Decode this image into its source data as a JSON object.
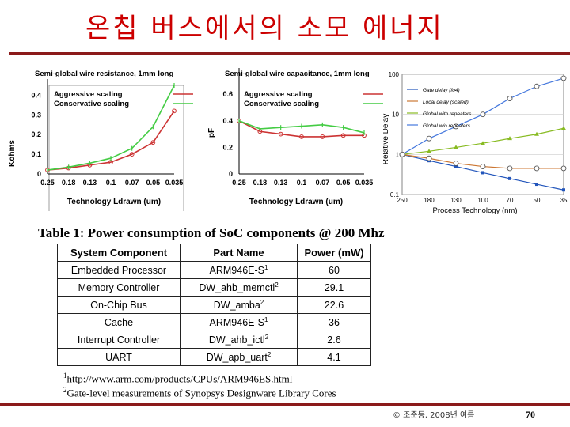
{
  "slide": {
    "title": "온칩 버스에서의 소모 에너지",
    "footer": "© 조준동, 2008년 여름",
    "page_number": "70"
  },
  "chart_data": [
    {
      "type": "line",
      "title": "Semi-global wire resistance, 1mm long",
      "xlabel": "Technology Ldrawn (um)",
      "ylabel": "Kohms",
      "categories": [
        "0.25",
        "0.18",
        "0.13",
        "0.1",
        "0.07",
        "0.05",
        "0.035"
      ],
      "ylim": [
        0,
        0.45
      ],
      "yticks": [
        "0",
        "0.1",
        "0.2",
        "0.3",
        "0.4"
      ],
      "series": [
        {
          "name": "Aggressive scaling",
          "color": "#cc3333",
          "values": [
            0.02,
            0.03,
            0.045,
            0.06,
            0.1,
            0.16,
            0.32
          ]
        },
        {
          "name": "Conservative scaling",
          "color": "#44cc44",
          "values": [
            0.02,
            0.035,
            0.055,
            0.08,
            0.13,
            0.24,
            0.45
          ]
        }
      ]
    },
    {
      "type": "line",
      "title": "Semi-global wire capacitance, 1mm long",
      "xlabel": "Technology Ldrawn (um)",
      "ylabel": "pF",
      "categories": [
        "0.25",
        "0.18",
        "0.13",
        "0.1",
        "0.07",
        "0.05",
        "0.035"
      ],
      "ylim": [
        0,
        0.75
      ],
      "yticks": [
        "0",
        "0.2",
        "0.4",
        "0.6"
      ],
      "series": [
        {
          "name": "Aggressive scaling",
          "color": "#cc3333",
          "values": [
            0.4,
            0.32,
            0.3,
            0.28,
            0.28,
            0.29,
            0.29
          ]
        },
        {
          "name": "Conservative scaling",
          "color": "#44cc44",
          "values": [
            0.4,
            0.34,
            0.35,
            0.36,
            0.37,
            0.35,
            0.31
          ]
        }
      ]
    },
    {
      "type": "line",
      "yscale": "log",
      "xlabel": "Process Technology (nm)",
      "ylabel": "Relative Delay",
      "categories": [
        "250",
        "180",
        "130",
        "100",
        "70",
        "50",
        "35"
      ],
      "ylim": [
        0.1,
        100
      ],
      "yticks": [
        "100",
        "10",
        "1",
        "0.1"
      ],
      "series": [
        {
          "name": "Gate delay (fo4)",
          "color": "#2255bb",
          "values": [
            1,
            0.7,
            0.5,
            0.35,
            0.25,
            0.18,
            0.13
          ]
        },
        {
          "name": "Local delay (scaled)",
          "color": "#cc7733",
          "values": [
            1,
            0.8,
            0.6,
            0.5,
            0.45,
            0.45,
            0.45
          ]
        },
        {
          "name": "Global with repeaters",
          "color": "#88bb22",
          "values": [
            1,
            1.2,
            1.5,
            1.9,
            2.5,
            3.2,
            4.5
          ]
        },
        {
          "name": "Global w/o repeaters",
          "color": "#4477dd",
          "values": [
            1,
            2.5,
            5,
            10,
            25,
            50,
            80
          ]
        }
      ]
    }
  ],
  "table": {
    "caption": "Table 1: Power consumption of SoC components @ 200 Mhz",
    "headers": [
      "System Component",
      "Part Name",
      "Power (mW)"
    ],
    "rows": [
      [
        "Embedded Processor",
        "ARM946E-S",
        "1",
        "60"
      ],
      [
        "Memory Controller",
        "DW_ahb_memctl",
        "2",
        "29.1"
      ],
      [
        "On-Chip Bus",
        "DW_amba",
        "2",
        "22.6"
      ],
      [
        "Cache",
        "ARM946E-S",
        "1",
        "36"
      ],
      [
        "Interrupt Controller",
        "DW_ahb_ictl",
        "2",
        "2.6"
      ],
      [
        "UART",
        "DW_apb_uart",
        "2",
        "4.1"
      ]
    ]
  },
  "footnotes": [
    {
      "mark": "1",
      "text": "http://www.arm.com/products/CPUs/ARM946ES.html"
    },
    {
      "mark": "2",
      "text": "Gate-level measurements of Synopsys Designware Library Cores"
    }
  ]
}
